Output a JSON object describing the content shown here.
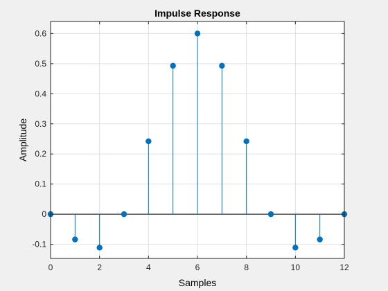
{
  "chart_data": {
    "type": "stem",
    "title": "Impulse Response",
    "xlabel": "Samples",
    "ylabel": "Amplitude",
    "xlim": [
      0,
      12
    ],
    "ylim": [
      -0.147,
      0.64
    ],
    "xticks": [
      0,
      2,
      4,
      6,
      8,
      10,
      12
    ],
    "yticks": [
      -0.1,
      0,
      0.1,
      0.2,
      0.3,
      0.4,
      0.5,
      0.6
    ],
    "ytick_labels": [
      "-0.1",
      "0",
      "0.1",
      "0.2",
      "0.3",
      "0.4",
      "0.5",
      "0.6"
    ],
    "grid": true,
    "color": "#0072bd",
    "x": [
      0,
      1,
      2,
      3,
      4,
      5,
      6,
      7,
      8,
      9,
      10,
      11,
      12
    ],
    "y": [
      0,
      -0.084,
      -0.111,
      0,
      0.242,
      0.493,
      0.6,
      0.493,
      0.242,
      0,
      -0.111,
      -0.084,
      0
    ]
  }
}
